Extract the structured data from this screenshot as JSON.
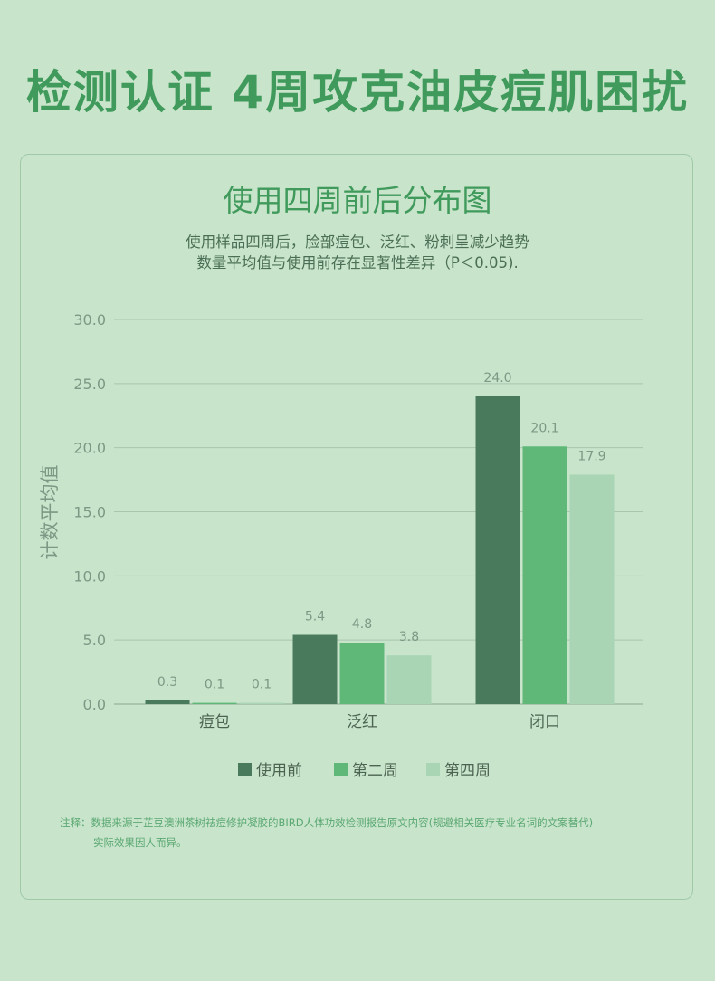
{
  "headline": "检测认证 4周攻克油皮痘肌困扰",
  "subtitle_line1": "使用样品四周后，脸部痘包、泛红、粉刺呈减少趋势",
  "subtitle_line2": "数量平均值与使用前存在显著性差异（P＜0.05).",
  "footnote": {
    "line1": "注释：数据来源于芷豆澳洲茶树祛痘修护凝胶的BIRD人体功效检测报告原文内容(规避相关医疗专业名词的文案替代)",
    "line2": "实际效果因人而异。"
  },
  "colors": {
    "background": "#c8e4cb",
    "accent": "#3f9a5b",
    "series_before": "#4a7a5c",
    "series_week2": "#5fb878",
    "series_week4": "#a9d5b4"
  },
  "chart_data": {
    "type": "bar",
    "title": "使用四周前后分布图",
    "ylabel": "计数平均值",
    "xlabel": "",
    "ylim": [
      0,
      30
    ],
    "yticks": [
      "0.0",
      "5.0",
      "10.0",
      "15.0",
      "20.0",
      "25.0",
      "30.0"
    ],
    "categories": [
      "痘包",
      "泛红",
      "闭口"
    ],
    "series": [
      {
        "name": "使用前",
        "values": [
          0.3,
          5.4,
          24.0
        ],
        "labels": [
          "0.3",
          "5.4",
          "24.0"
        ],
        "color": "#4a7a5c"
      },
      {
        "name": "第二周",
        "values": [
          0.1,
          4.8,
          20.1
        ],
        "labels": [
          "0.1",
          "4.8",
          "20.1"
        ],
        "color": "#5fb878"
      },
      {
        "name": "第四周",
        "values": [
          0.1,
          3.8,
          17.9
        ],
        "labels": [
          "0.1",
          "3.8",
          "17.9"
        ],
        "color": "#a9d5b4"
      }
    ],
    "legend": "bottom-center",
    "grid": true
  }
}
